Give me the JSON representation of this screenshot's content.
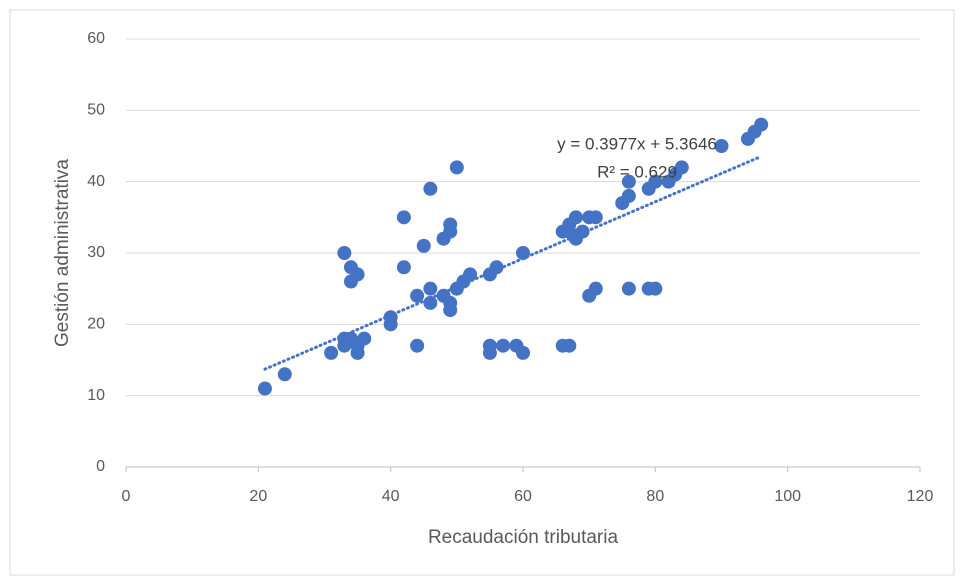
{
  "chart_data": {
    "type": "scatter",
    "xlabel": "Recaudación tributaria",
    "ylabel": "Gestión administrativa",
    "color": "#4472c4",
    "x": [
      21,
      24,
      31,
      33,
      33,
      33,
      34,
      34,
      35,
      34,
      35,
      35,
      36,
      40,
      40,
      42,
      42,
      44,
      44,
      45,
      46,
      46,
      46,
      48,
      49,
      49,
      48,
      49,
      49,
      50,
      50,
      51,
      52,
      55,
      56,
      55,
      55,
      57,
      59,
      60,
      60,
      66,
      67,
      67,
      68,
      68,
      69,
      66,
      67,
      70,
      71,
      70,
      71,
      75,
      76,
      76,
      76,
      79,
      80,
      79,
      80,
      82,
      83,
      84,
      90,
      94,
      95,
      96
    ],
    "y": [
      11,
      13,
      16,
      17,
      18,
      30,
      28,
      26,
      27,
      18,
      17,
      16,
      18,
      21,
      20,
      35,
      28,
      24,
      17,
      31,
      39,
      25,
      23,
      32,
      34,
      33,
      24,
      23,
      22,
      42,
      25,
      26,
      27,
      27,
      28,
      17,
      16,
      17,
      17,
      16,
      30,
      33,
      34,
      33,
      35,
      32,
      33,
      17,
      17,
      35,
      35,
      24,
      25,
      37,
      38,
      40,
      25,
      39,
      40,
      25,
      25,
      40,
      41,
      42,
      45,
      46,
      47,
      48
    ],
    "xlim": [
      0,
      120
    ],
    "xticks": [
      0,
      20,
      40,
      60,
      80,
      100,
      120
    ],
    "ylim": [
      0,
      60
    ],
    "yticks": [
      0,
      10,
      20,
      30,
      40,
      50,
      60
    ],
    "grid": true,
    "trendline": {
      "label": "y = 0.3977x + 5.3646",
      "r2_label": "R² = 0.629",
      "slope": 0.3977,
      "intercept": 5.3646
    }
  }
}
